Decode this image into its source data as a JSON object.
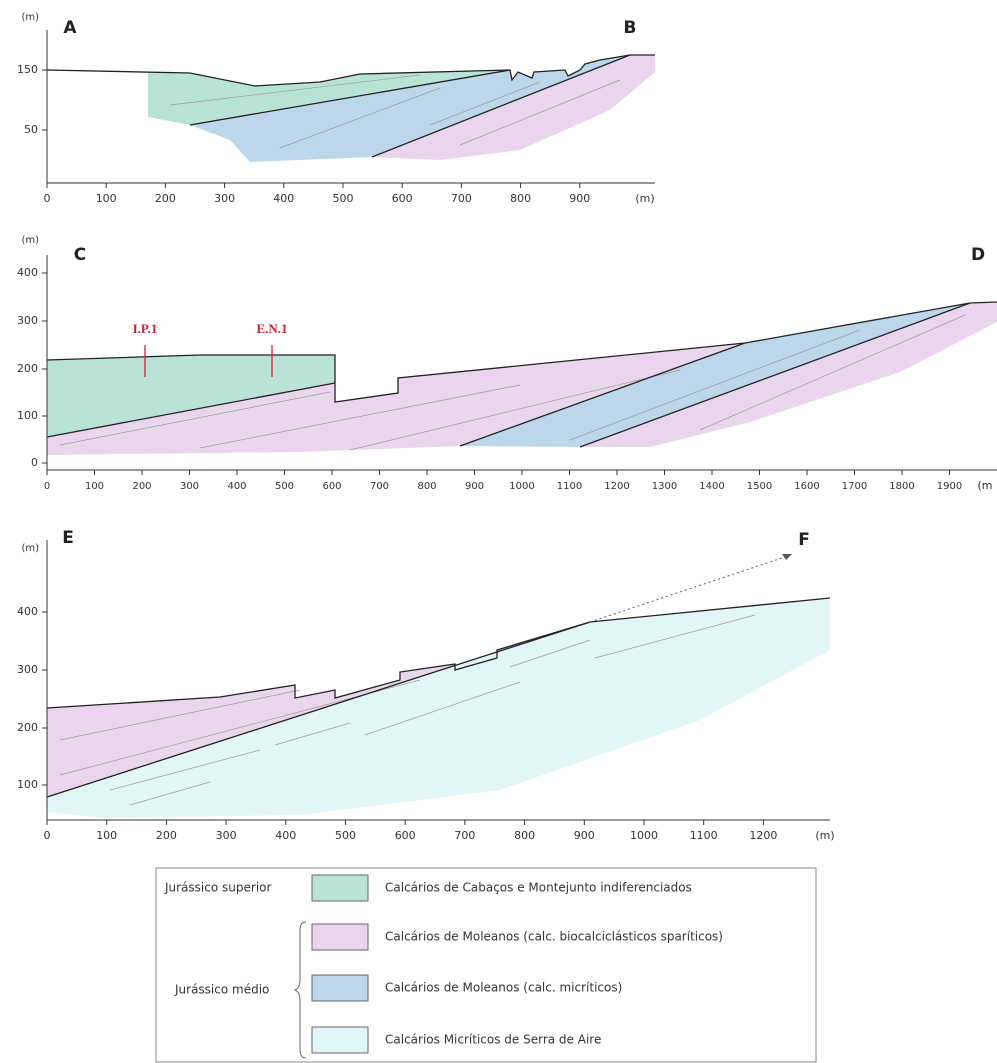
{
  "panels": [
    {
      "labels": [
        "A",
        "B"
      ],
      "y_unit": "(m)",
      "x_unit": "(m)",
      "yticks": [
        "150",
        "50"
      ],
      "xticks": [
        "0",
        "100",
        "200",
        "300",
        "400",
        "500",
        "600",
        "700",
        "800",
        "900"
      ]
    },
    {
      "labels": [
        "C",
        "D"
      ],
      "y_unit": "(m)",
      "x_unit": "(m",
      "yticks": [
        "0",
        "100",
        "200",
        "300",
        "400"
      ],
      "xticks": [
        "0",
        "100",
        "200",
        "300",
        "400",
        "500",
        "600",
        "700",
        "800",
        "900",
        "1000",
        "1100",
        "1200",
        "1300",
        "1400",
        "1500",
        "1600",
        "1700",
        "1800",
        "1900"
      ],
      "wells": [
        "I.P.1",
        "E.N.1"
      ]
    },
    {
      "labels": [
        "E",
        "F"
      ],
      "y_unit": "(m)",
      "x_unit": "(m)",
      "yticks": [
        "100",
        "200",
        "300",
        "400"
      ],
      "xticks": [
        "0",
        "100",
        "200",
        "300",
        "400",
        "500",
        "600",
        "700",
        "800",
        "900",
        "1000",
        "1100",
        "1200"
      ]
    }
  ],
  "legend": {
    "groups": [
      {
        "label": "Jurássico superior",
        "items": [
          "Calcários de Cabaços e Montejunto indiferenciados"
        ]
      },
      {
        "label": "Jurássico médio",
        "items": [
          "Calcários de Moleanos (calc. biocalciclásticos sparíticos)",
          "Calcários de Moleanos (calc. micríticos)",
          "Calcários Micríticos de Serra de Aire"
        ]
      }
    ]
  }
}
